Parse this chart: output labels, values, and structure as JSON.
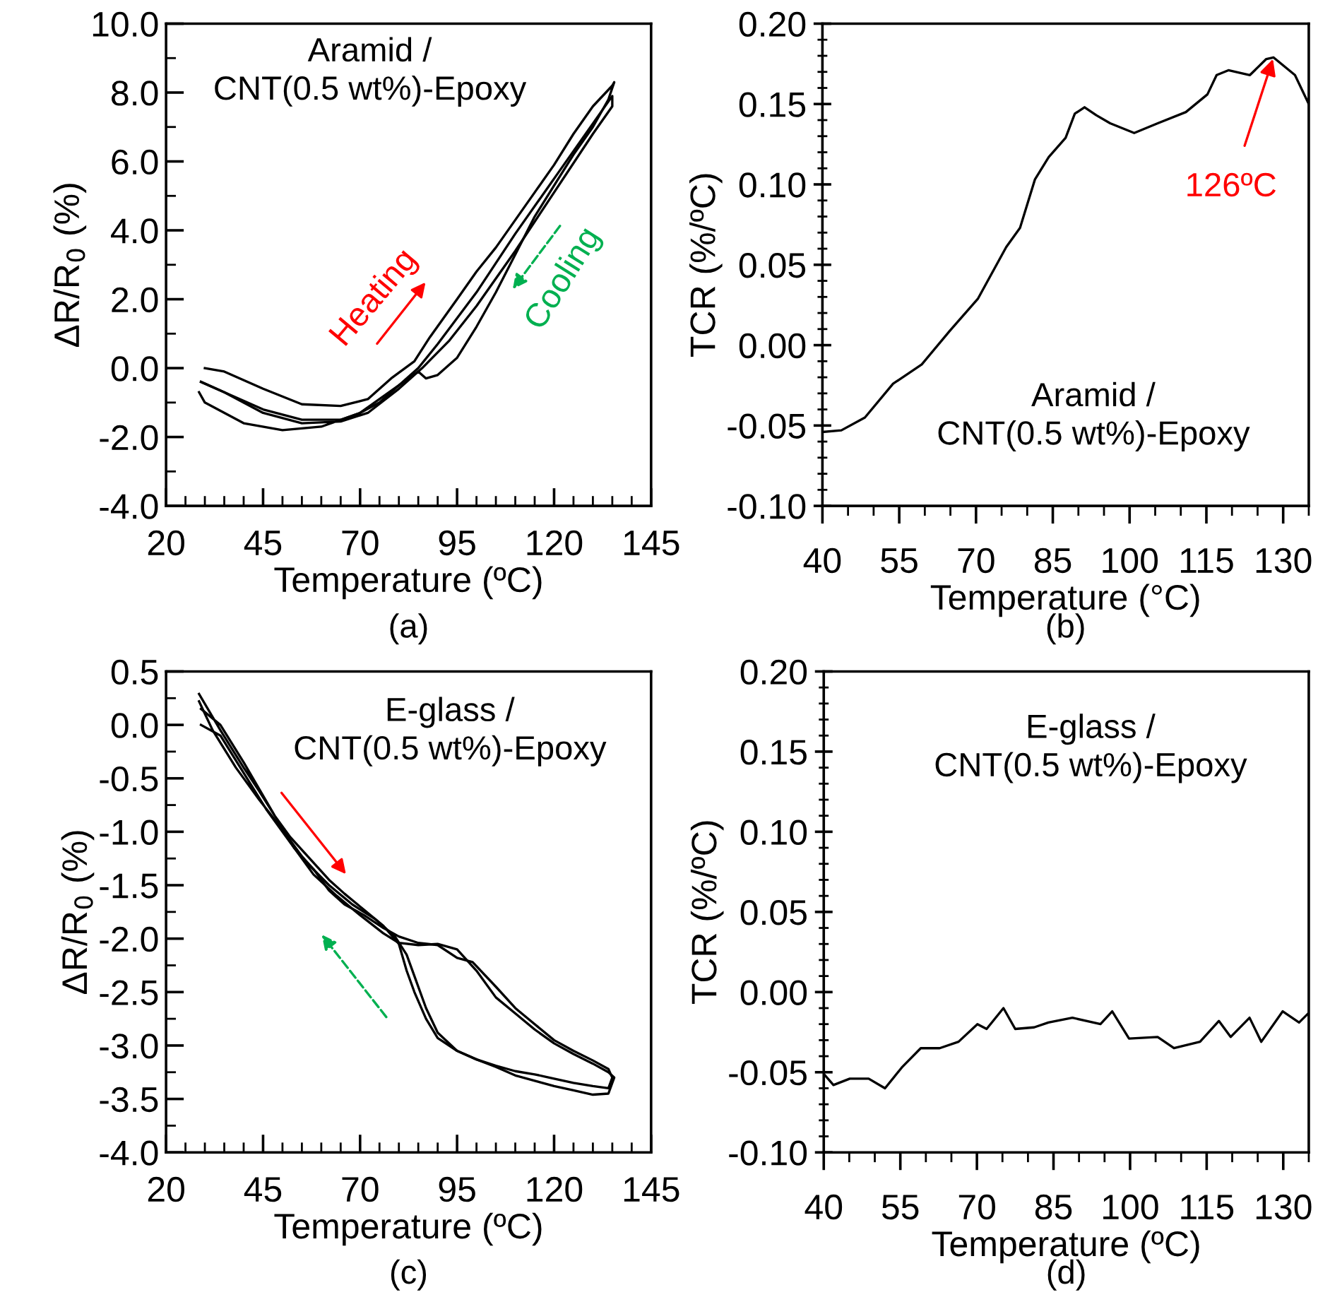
{
  "chart_data": [
    {
      "type": "line",
      "xlabel": "Temperature (ºC)",
      "ylabel": "ΔR/R$_{0}$ (%)",
      "xlim": [
        20,
        145
      ],
      "xticks": [
        20,
        45,
        70,
        95,
        120,
        145
      ],
      "ylim": [
        -4,
        10
      ],
      "yticks": [
        {
          "value": -4,
          "label": "-4.0"
        },
        {
          "value": -2,
          "label": "-2.0"
        },
        {
          "value": 0,
          "label": "0.0"
        },
        {
          "value": 2,
          "label": "2.0"
        },
        {
          "value": 4,
          "label": "4.0"
        },
        {
          "value": 6,
          "label": "6.0"
        },
        {
          "value": 8,
          "label": "8.0"
        },
        {
          "value": 10,
          "label": "10.0"
        }
      ],
      "grid": false,
      "legend": false,
      "marker": "none",
      "line_style": "solid",
      "annotations": [
        "Aramid /\nCNT(0.5 wt%)-Epoxy",
        "Heating",
        "Cooling",
        "(a)"
      ],
      "series": [
        {
          "color": "#000000",
          "x": [
            30,
            35,
            45,
            55,
            65,
            72,
            78,
            84,
            88,
            95,
            100,
            105,
            110,
            115,
            120,
            125,
            130,
            135,
            135.5,
            134,
            130,
            125,
            120,
            115,
            110,
            105,
            100,
            95,
            90,
            87,
            85,
            80,
            75,
            70,
            65,
            55,
            45,
            35,
            29
          ],
          "values": [
            0.0,
            -0.1,
            -0.6,
            -1.05,
            -1.1,
            -0.9,
            -0.3,
            0.2,
            0.9,
            2.0,
            2.8,
            3.5,
            4.3,
            5.1,
            5.9,
            6.8,
            7.6,
            8.2,
            8.3,
            7.8,
            7.0,
            6.2,
            5.3,
            4.4,
            3.3,
            2.2,
            1.2,
            0.3,
            -0.2,
            -0.3,
            -0.1,
            -0.5,
            -1.0,
            -1.3,
            -1.5,
            -1.5,
            -1.2,
            -0.7,
            -0.4
          ]
        },
        {
          "color": "#000000",
          "x": [
            29,
            35,
            45,
            55,
            65,
            72,
            80,
            86,
            93,
            100,
            110,
            120,
            130,
            135,
            135,
            130,
            120,
            110,
            100,
            90,
            85,
            80,
            70,
            60,
            50,
            40,
            30,
            28.5
          ],
          "values": [
            -0.4,
            -0.7,
            -1.3,
            -1.6,
            -1.55,
            -1.3,
            -0.6,
            0.0,
            0.8,
            1.8,
            3.4,
            5.1,
            6.8,
            7.6,
            7.9,
            7.1,
            5.5,
            3.9,
            2.2,
            0.7,
            0.0,
            -0.5,
            -1.3,
            -1.7,
            -1.8,
            -1.6,
            -1.0,
            -0.7
          ]
        }
      ]
    },
    {
      "type": "line",
      "xlabel": "Temperature (°C)",
      "ylabel": "TCR (%/ºC)",
      "xlim": [
        40,
        135
      ],
      "xticks": [
        40,
        55,
        70,
        85,
        100,
        115,
        130
      ],
      "ylim": [
        -0.1,
        0.2
      ],
      "yticks": [
        {
          "value": -0.1,
          "label": "-0.10"
        },
        {
          "value": -0.05,
          "label": "-0.05"
        },
        {
          "value": 0,
          "label": "0.00"
        },
        {
          "value": 0.05,
          "label": "0.05"
        },
        {
          "value": 0.1,
          "label": "0.10"
        },
        {
          "value": 0.15,
          "label": "0.15"
        },
        {
          "value": 0.2,
          "label": "0.20"
        }
      ],
      "grid": false,
      "legend": false,
      "marker": "none",
      "line_style": "solid",
      "annotations": [
        "Aramid /\nCNT(0.5 wt%)-Epoxy",
        {
          "text": "126ºC",
          "x": 128,
          "y": 0.178
        },
        "(b)"
      ],
      "series": [
        {
          "color": "#000000",
          "x": [
            40,
            43.7,
            48.3,
            53.8,
            59.4,
            64.9,
            70.4,
            75.9,
            78.6,
            81.5,
            84.2,
            87.5,
            89.3,
            91.2,
            93.5,
            96.2,
            100.9,
            105.5,
            111,
            115.2,
            117,
            119.3,
            123.5,
            126.7,
            128.1,
            132.3,
            135
          ],
          "values": [
            -0.054,
            -0.053,
            -0.045,
            -0.024,
            -0.012,
            0.009,
            0.029,
            0.061,
            0.073,
            0.103,
            0.117,
            0.129,
            0.144,
            0.148,
            0.143,
            0.138,
            0.132,
            0.138,
            0.145,
            0.156,
            0.168,
            0.171,
            0.168,
            0.178,
            0.179,
            0.168,
            0.15
          ]
        }
      ]
    },
    {
      "type": "line",
      "xlabel": "Temperature (ºC)",
      "ylabel": "ΔR/R$_{0}$ (%)",
      "xlim": [
        20,
        145
      ],
      "xticks": [
        20,
        45,
        70,
        95,
        120,
        145
      ],
      "ylim": [
        -4,
        0.5
      ],
      "yticks": [
        {
          "value": -4,
          "label": "-4.0"
        },
        {
          "value": -3.5,
          "label": "-3.5"
        },
        {
          "value": -3,
          "label": "-3.0"
        },
        {
          "value": -2.5,
          "label": "-2.5"
        },
        {
          "value": -2,
          "label": "-2.0"
        },
        {
          "value": -1.5,
          "label": "-1.5"
        },
        {
          "value": -1,
          "label": "-1.0"
        },
        {
          "value": -0.5,
          "label": "-0.5"
        },
        {
          "value": 0,
          "label": "0.0"
        },
        0.5
      ],
      "grid": false,
      "legend": false,
      "marker": "none",
      "line_style": "solid",
      "annotations": [
        "E-glass /\nCNT(0.5 wt%)-Epoxy",
        "(c)"
      ],
      "series": [
        {
          "color": "#000000",
          "x": [
            28.5,
            34,
            40,
            44,
            48,
            53,
            58,
            62,
            66,
            71,
            76,
            80,
            85,
            90,
            95,
            99,
            105,
            110,
            115,
            120,
            125,
            130,
            134,
            135,
            134,
            130,
            125,
            120,
            115,
            110,
            105,
            100,
            95,
            90,
            87,
            84,
            82,
            80,
            76,
            71,
            66,
            62,
            57,
            52,
            48,
            44,
            40,
            34,
            29
          ],
          "values": [
            0.29,
            -0.05,
            -0.4,
            -0.62,
            -0.85,
            -1.15,
            -1.35,
            -1.55,
            -1.68,
            -1.78,
            -1.9,
            -1.98,
            -2.04,
            -2.06,
            -2.18,
            -2.22,
            -2.45,
            -2.65,
            -2.8,
            -2.95,
            -3.05,
            -3.14,
            -3.22,
            -3.3,
            -3.4,
            -3.38,
            -3.35,
            -3.31,
            -3.27,
            -3.24,
            -3.19,
            -3.13,
            -3.05,
            -2.93,
            -2.75,
            -2.5,
            -2.3,
            -2.05,
            -1.88,
            -1.73,
            -1.58,
            -1.45,
            -1.25,
            -1.05,
            -0.85,
            -0.6,
            -0.35,
            0.0,
            0.15
          ]
        },
        {
          "color": "#000000",
          "x": [
            29,
            34,
            40,
            46,
            52,
            58,
            64,
            70,
            76,
            80,
            85,
            90,
            95,
            100,
            105,
            110,
            115,
            120,
            125,
            130,
            134,
            135.5,
            134,
            130,
            125,
            120,
            115,
            110,
            105,
            100,
            95,
            90,
            87,
            84,
            82,
            79,
            74,
            68,
            62,
            56,
            50,
            44,
            38,
            32,
            28.5
          ],
          "values": [
            0.0,
            -0.1,
            -0.45,
            -0.8,
            -1.1,
            -1.4,
            -1.6,
            -1.78,
            -1.95,
            -2.04,
            -2.06,
            -2.05,
            -2.1,
            -2.3,
            -2.55,
            -2.7,
            -2.85,
            -2.98,
            -3.08,
            -3.17,
            -3.25,
            -3.3,
            -3.45,
            -3.46,
            -3.42,
            -3.38,
            -3.33,
            -3.28,
            -3.2,
            -3.13,
            -3.05,
            -2.88,
            -2.65,
            -2.35,
            -2.15,
            -1.98,
            -1.82,
            -1.68,
            -1.5,
            -1.28,
            -0.98,
            -0.7,
            -0.4,
            -0.05,
            0.22
          ]
        }
      ]
    },
    {
      "type": "line",
      "xlabel": "Temperature (ºC)",
      "ylabel": "TCR (%/ºC)",
      "xlim": [
        40,
        135
      ],
      "xticks": [
        40,
        55,
        70,
        85,
        100,
        115,
        130
      ],
      "ylim": [
        -0.1,
        0.2
      ],
      "yticks": [
        {
          "value": -0.1,
          "label": "-0.10"
        },
        {
          "value": -0.05,
          "label": "-0.05"
        },
        {
          "value": 0,
          "label": "0.00"
        },
        {
          "value": 0.05,
          "label": "0.05"
        },
        {
          "value": 0.1,
          "label": "0.10"
        },
        {
          "value": 0.15,
          "label": "0.15"
        },
        {
          "value": 0.2,
          "label": "0.20"
        }
      ],
      "grid": false,
      "legend": false,
      "marker": "none",
      "line_style": "solid",
      "annotations": [
        "E-glass /\nCNT(0.5 wt%)-Epoxy",
        "(d)"
      ],
      "series": [
        {
          "color": "#000000",
          "x": [
            40,
            41.9,
            45.1,
            48.8,
            52,
            55.3,
            59,
            62.7,
            66.4,
            70.1,
            71.9,
            75.2,
            77.5,
            81.2,
            84,
            88.7,
            94.2,
            96.5,
            99.8,
            105.4,
            108.6,
            113.7,
            117.4,
            119.7,
            123.4,
            125.7,
            129.9,
            133.1,
            135
          ],
          "values": [
            -0.051,
            -0.058,
            -0.054,
            -0.054,
            -0.06,
            -0.047,
            -0.035,
            -0.035,
            -0.031,
            -0.02,
            -0.023,
            -0.01,
            -0.023,
            -0.022,
            -0.019,
            -0.016,
            -0.02,
            -0.012,
            -0.029,
            -0.028,
            -0.035,
            -0.031,
            -0.018,
            -0.028,
            -0.016,
            -0.031,
            -0.012,
            -0.019,
            -0.013
          ]
        }
      ]
    }
  ]
}
